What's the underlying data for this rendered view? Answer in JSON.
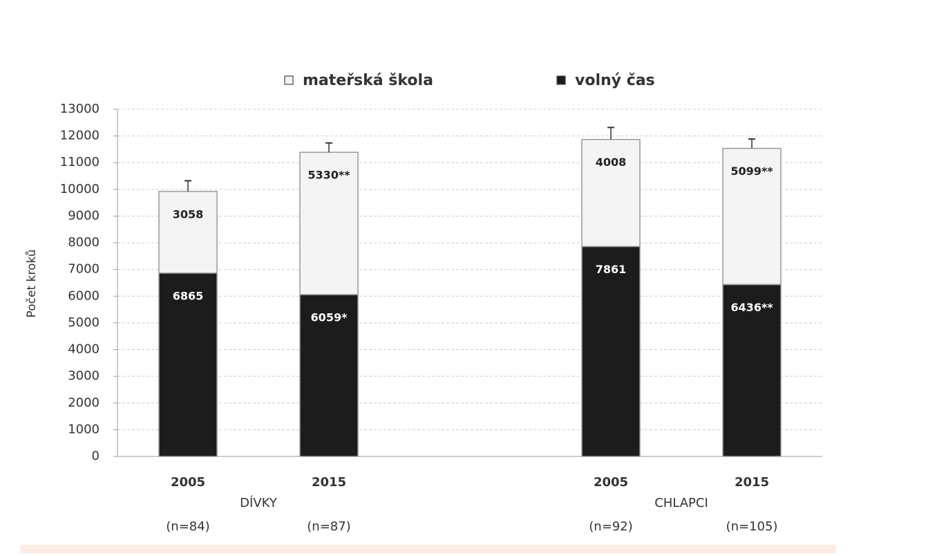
{
  "chart_data": {
    "type": "bar",
    "stacked": true,
    "y_label": "Počet kroků",
    "categories": [
      "2005",
      "2015",
      null,
      "2005",
      "2015"
    ],
    "sample_sizes": [
      "(n=84)",
      "(n=87)",
      null,
      "(n=92)",
      "(n=105)"
    ],
    "group_labels": [
      "DÍVKY",
      null,
      null,
      "CHLAPCI",
      null
    ],
    "series": [
      {
        "name": "mateřská škola",
        "color": "#f4f4f4",
        "values": [
          3058,
          5330,
          null,
          4008,
          5099
        ],
        "value_labels": [
          "3058",
          "5330**",
          null,
          "4008",
          "5099**"
        ],
        "errors": [
          400,
          350,
          450,
          350
        ]
      },
      {
        "name": "volný čas",
        "color": "#1c1c1c",
        "values": [
          6865,
          6059,
          null,
          7861,
          6436
        ],
        "value_labels": [
          "6865",
          "6059*",
          null,
          "7861",
          "6436**"
        ]
      }
    ],
    "ylim": [
      0,
      13000
    ],
    "yticks": [
      0,
      1000,
      2000,
      3000,
      4000,
      5000,
      6000,
      7000,
      8000,
      9000,
      10000,
      11000,
      12000,
      13000
    ],
    "grid": true
  }
}
